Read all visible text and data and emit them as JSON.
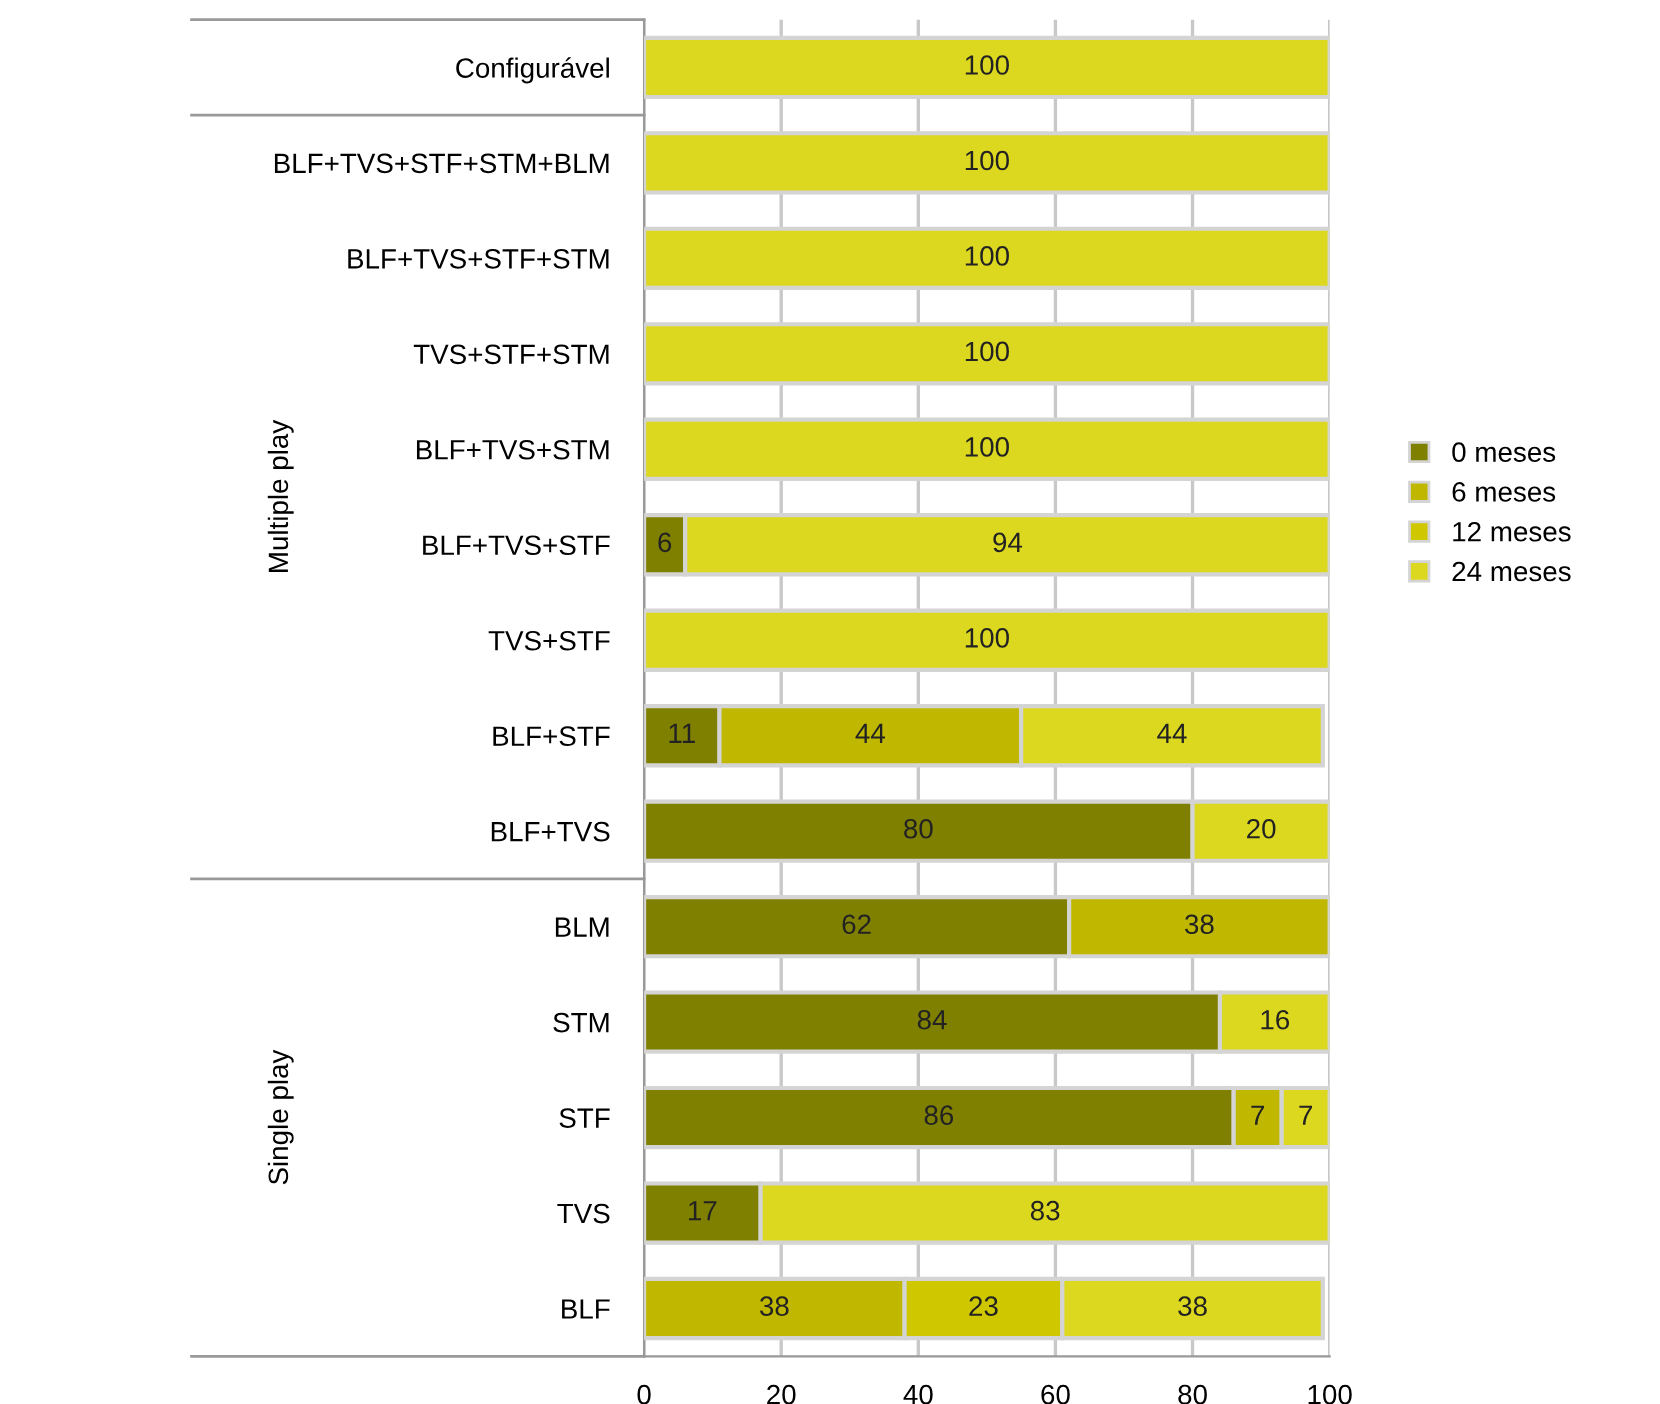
{
  "chart_data": {
    "type": "bar",
    "orientation": "horizontal",
    "stacked": true,
    "data_labels": true,
    "legend": "right",
    "grid": "x",
    "categories": [
      "Configurável",
      "BLF+TVS+STF+STM+BLM",
      "BLF+TVS+STF+STM",
      "TVS+STF+STM",
      "BLF+TVS+STM",
      "BLF+TVS+STF",
      "TVS+STF",
      "BLF+STF",
      "BLF+TVS",
      "BLM",
      "STM",
      "STF",
      "TVS",
      "BLF"
    ],
    "series": [
      {
        "name": "0 meses",
        "color": "#808000",
        "values": [
          null,
          null,
          null,
          null,
          null,
          6,
          null,
          11,
          80,
          62,
          84,
          86,
          17,
          null
        ]
      },
      {
        "name": "6 meses",
        "color": "#c0b800",
        "values": [
          null,
          null,
          null,
          null,
          null,
          null,
          null,
          44,
          null,
          38,
          null,
          7,
          null,
          38
        ]
      },
      {
        "name": "12 meses",
        "color": "#cfc800",
        "values": [
          null,
          null,
          null,
          null,
          null,
          null,
          null,
          null,
          null,
          null,
          null,
          null,
          null,
          23
        ]
      },
      {
        "name": "24 meses",
        "color": "#dcd820",
        "values": [
          100,
          100,
          100,
          100,
          100,
          94,
          100,
          44,
          20,
          null,
          16,
          7,
          83,
          38
        ]
      }
    ],
    "xlim": [
      0,
      100
    ],
    "xticks": [
      0,
      20,
      40,
      60,
      80,
      100
    ],
    "annotations": [
      "Multiple play",
      "Single play"
    ]
  }
}
